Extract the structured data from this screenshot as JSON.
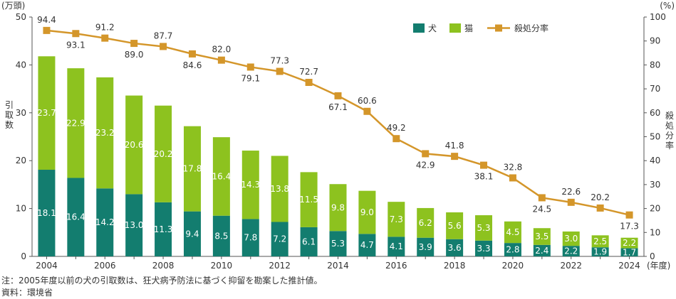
{
  "colors": {
    "dog": "#137d6f",
    "cat": "#8dc21f",
    "rate": "#d4962a",
    "axis": "#555555",
    "grid": "#cccccc"
  },
  "chart_data": {
    "type": "bar",
    "stacked": true,
    "categories": [
      "2004",
      "2005",
      "2006",
      "2007",
      "2008",
      "2009",
      "2010",
      "2011",
      "2012",
      "2013",
      "2014",
      "2015",
      "2016",
      "2017",
      "2018",
      "2019",
      "2020",
      "2021",
      "2022",
      "2023",
      "2024"
    ],
    "x_tick_labels": [
      "2004",
      "2006",
      "2008",
      "2010",
      "2012",
      "2014",
      "2016",
      "2018",
      "2020",
      "2022",
      "2024"
    ],
    "series": [
      {
        "name": "犬",
        "axis": "left",
        "values": [
          18.1,
          16.4,
          14.2,
          13.0,
          11.3,
          9.4,
          8.5,
          7.8,
          7.2,
          6.1,
          5.3,
          4.7,
          4.1,
          3.9,
          3.6,
          3.3,
          2.8,
          2.4,
          2.2,
          1.9,
          1.7
        ]
      },
      {
        "name": "猫",
        "axis": "left",
        "values": [
          23.7,
          22.9,
          23.2,
          20.6,
          20.2,
          17.8,
          16.4,
          14.3,
          13.8,
          11.5,
          9.8,
          9.0,
          7.3,
          6.2,
          5.6,
          5.3,
          4.5,
          3.5,
          3.0,
          2.5,
          2.2
        ]
      },
      {
        "name": "殺処分率",
        "type": "line",
        "axis": "right",
        "values": [
          94.4,
          93.1,
          91.2,
          89.0,
          87.7,
          84.6,
          82.0,
          79.1,
          77.3,
          72.7,
          67.1,
          60.6,
          49.2,
          42.9,
          41.8,
          38.1,
          32.8,
          24.5,
          22.6,
          20.2,
          17.3
        ]
      }
    ],
    "y_left": {
      "unit": "(万頭)",
      "label": "引取数",
      "lim": [
        0,
        50
      ],
      "ticks": [
        "0",
        "10",
        "20",
        "30",
        "40",
        "50"
      ]
    },
    "y_right": {
      "unit": "(%)",
      "label": "殺処分率",
      "lim": [
        0,
        100
      ],
      "ticks": [
        "0",
        "10",
        "20",
        "30",
        "40",
        "50",
        "60",
        "70",
        "80",
        "90",
        "100"
      ]
    },
    "x_unit": "(年度)",
    "legend_position": "top-right",
    "grid": false
  },
  "notes": {
    "note1": "注：2005年度以前の犬の引取数は、狂犬病予防法に基づく抑留を勘案した推計値。",
    "source": "資料：環境省"
  }
}
